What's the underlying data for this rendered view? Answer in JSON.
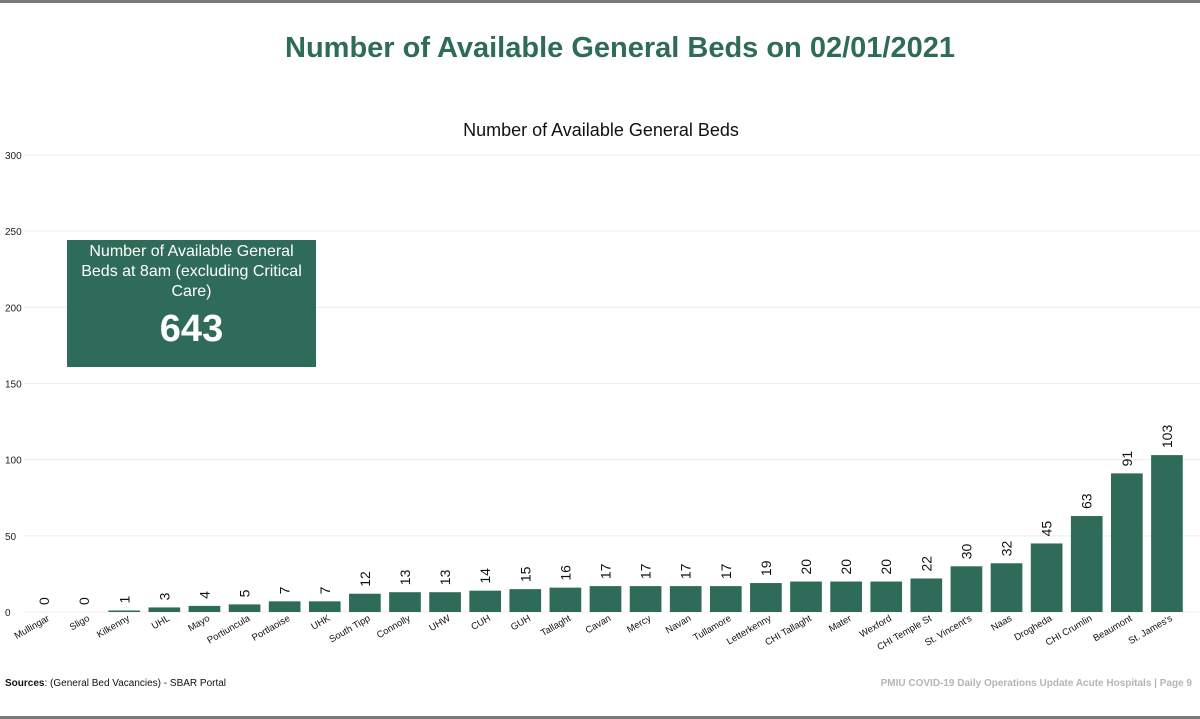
{
  "page_title": "Number of Available General Beds on 02/01/2021",
  "kpi": {
    "label": "Number of Available General Beds at 8am (excluding Critical Care)",
    "value": "643"
  },
  "sources": {
    "prefix": "Sources",
    "text": ": (General Bed Vacancies) - SBAR Portal"
  },
  "footer": "PMIU COVID-19 Daily Operations Update Acute Hospitals |  Page 9",
  "colors": {
    "bar": "#2e6b58",
    "title": "#2e6b58"
  },
  "chart_data": {
    "type": "bar",
    "title": "Number of Available General Beds",
    "xlabel": "",
    "ylabel": "",
    "ylim": [
      0,
      300
    ],
    "yticks": [
      0,
      50,
      100,
      150,
      200,
      250,
      300
    ],
    "grid": true,
    "categories": [
      "Mullingar",
      "Sligo",
      "Kilkenny",
      "UHL",
      "Mayo",
      "Portiuncula",
      "Portlaoise",
      "UHK",
      "South Tipp",
      "Connolly",
      "UHW",
      "CUH",
      "GUH",
      "Tallaght",
      "Cavan",
      "Mercy",
      "Navan",
      "Tullamore",
      "Letterkenny",
      "CHI Tallaght",
      "Mater",
      "Wexford",
      "CHI Temple St",
      "St. Vincent's",
      "Naas",
      "Drogheda",
      "CHI Crumlin",
      "Beaumont",
      "St. James's"
    ],
    "values": [
      0,
      0,
      1,
      3,
      4,
      5,
      7,
      7,
      12,
      13,
      13,
      14,
      15,
      16,
      17,
      17,
      17,
      17,
      19,
      20,
      20,
      20,
      22,
      30,
      32,
      45,
      63,
      91,
      103
    ]
  }
}
